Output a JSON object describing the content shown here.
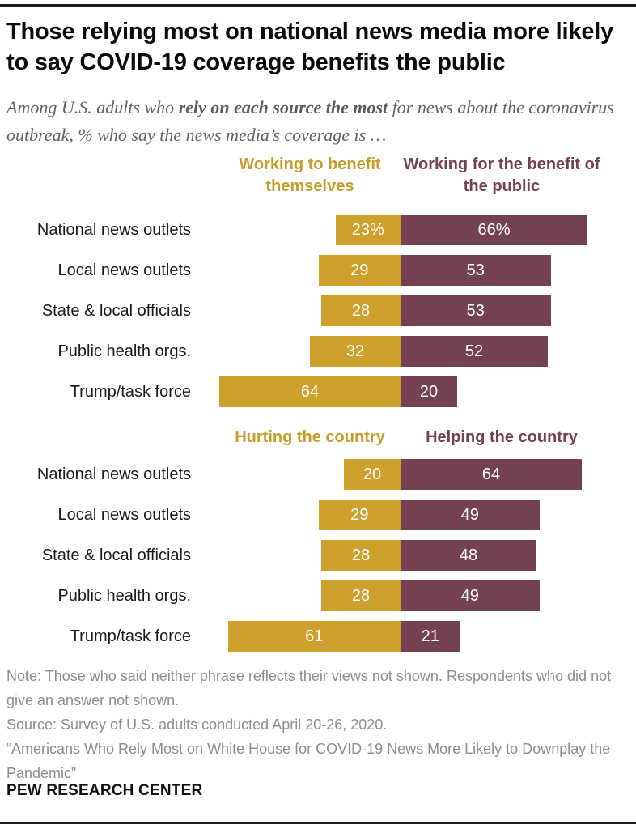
{
  "page": {
    "title": "Those relying most on national news media more likely to say COVID-19 coverage benefits the public",
    "subtitle_prefix": "Among U.S. adults who ",
    "subtitle_bold": "rely on each source the most",
    "subtitle_suffix": " for news about the coronavirus outbreak, % who say the news media’s coverage is …"
  },
  "colors": {
    "gold": "#CDA12C",
    "maroon": "#73414F",
    "gold_header_text": "#C79D2A",
    "maroon_header_text": "#73414F",
    "bar_value_text": "#FFFFFF"
  },
  "chart_data": [
    {
      "type": "bar",
      "orientation": "horizontal-diverging",
      "left_header": "Working to benefit themselves",
      "right_header": "Working for the benefit of the public",
      "categories": [
        "National news outlets",
        "Local news outlets",
        "State & local officials",
        "Public health orgs.",
        "Trump/task force"
      ],
      "series": [
        {
          "name": "Working to benefit themselves",
          "side": "left",
          "color": "#CDA12C",
          "values": [
            23,
            29,
            28,
            32,
            64
          ],
          "labels": [
            "23%",
            "29",
            "28",
            "32",
            "64"
          ]
        },
        {
          "name": "Working for the benefit of the public",
          "side": "right",
          "color": "#73414F",
          "values": [
            66,
            53,
            53,
            52,
            20
          ],
          "labels": [
            "66%",
            "53",
            "53",
            "52",
            "20"
          ]
        }
      ],
      "xlim": [
        -70,
        70
      ],
      "grid": false,
      "legend_position": "top-column-headers"
    },
    {
      "type": "bar",
      "orientation": "horizontal-diverging",
      "left_header": "Hurting the country",
      "right_header": "Helping the country",
      "categories": [
        "National news outlets",
        "Local news outlets",
        "State & local officials",
        "Public health orgs.",
        "Trump/task force"
      ],
      "series": [
        {
          "name": "Hurting the country",
          "side": "left",
          "color": "#CDA12C",
          "values": [
            20,
            29,
            28,
            28,
            61
          ],
          "labels": [
            "20",
            "29",
            "28",
            "28",
            "61"
          ]
        },
        {
          "name": "Helping the country",
          "side": "right",
          "color": "#73414F",
          "values": [
            64,
            49,
            48,
            49,
            21
          ],
          "labels": [
            "64",
            "49",
            "48",
            "49",
            "21"
          ]
        }
      ],
      "xlim": [
        -70,
        70
      ],
      "grid": false,
      "legend_position": "top-column-headers"
    }
  ],
  "footer": {
    "note": "Note: Those who said neither phrase reflects their views not shown. Respondents who did not give an answer not shown.",
    "source": "Source: Survey of U.S. adults conducted April 20-26, 2020.",
    "quote": "“Americans Who Rely Most on White House for COVID-19 News More Likely to Downplay the Pandemic”",
    "brand": "PEW RESEARCH CENTER"
  }
}
